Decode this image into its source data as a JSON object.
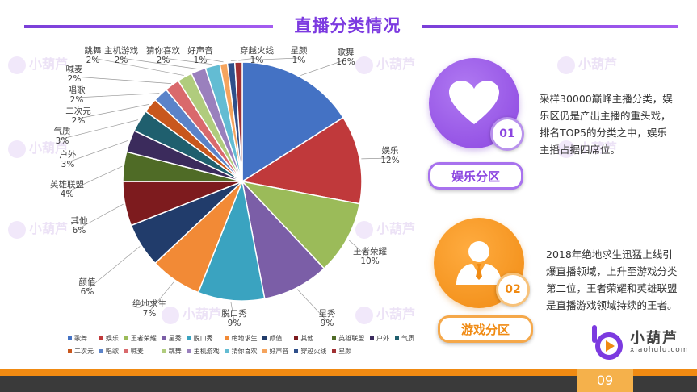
{
  "page": {
    "title": "直播分类情况",
    "page_number": "09"
  },
  "colors": {
    "accent_purple": "#8b45e0",
    "accent_orange": "#f08a12"
  },
  "watermark": {
    "text": "小葫芦"
  },
  "chart_data": {
    "type": "pie",
    "title": "",
    "legend_position": "bottom",
    "slices": [
      {
        "label": "歌舞",
        "value": 16,
        "value_label": "16%",
        "color": "#4472c4"
      },
      {
        "label": "娱乐",
        "value": 12,
        "value_label": "12%",
        "color": "#c0393b"
      },
      {
        "label": "王者荣耀",
        "value": 10,
        "value_label": "10%",
        "color": "#9bbb59"
      },
      {
        "label": "星秀",
        "value": 9,
        "value_label": "9%",
        "color": "#7b5ea7"
      },
      {
        "label": "脱口秀",
        "value": 9,
        "value_label": "9%",
        "color": "#3aa3c0"
      },
      {
        "label": "绝地求生",
        "value": 7,
        "value_label": "7%",
        "color": "#f28a36"
      },
      {
        "label": "颜值",
        "value": 6,
        "value_label": "6%",
        "color": "#213c6b"
      },
      {
        "label": "其他",
        "value": 6,
        "value_label": "6%",
        "color": "#7d1b1e"
      },
      {
        "label": "英雄联盟",
        "value": 4,
        "value_label": "4%",
        "color": "#4f6b26"
      },
      {
        "label": "户外",
        "value": 3,
        "value_label": "3%",
        "color": "#3b2b5c"
      },
      {
        "label": "气质",
        "value": 3,
        "value_label": "3%",
        "color": "#1f5f6e"
      },
      {
        "label": "二次元",
        "value": 2,
        "value_label": "2%",
        "color": "#c8571d"
      },
      {
        "label": "唱歌",
        "value": 2,
        "value_label": "2%",
        "color": "#5b83c9"
      },
      {
        "label": "喊麦",
        "value": 2,
        "value_label": "2%",
        "color": "#d9696c"
      },
      {
        "label": "跳舞",
        "value": 2,
        "value_label": "2%",
        "color": "#b0cc7d"
      },
      {
        "label": "主机游戏",
        "value": 2,
        "value_label": "2%",
        "color": "#9a80bd"
      },
      {
        "label": "猜你喜欢",
        "value": 2,
        "value_label": "2%",
        "color": "#63bcd3"
      },
      {
        "label": "好声音",
        "value": 1,
        "value_label": "1%",
        "color": "#f5a45d"
      },
      {
        "label": "穿越火线",
        "value": 1,
        "value_label": "1%",
        "color": "#2e4f8a"
      },
      {
        "label": "星颜",
        "value": 1,
        "value_label": "1%",
        "color": "#a03033"
      }
    ]
  },
  "sections": [
    {
      "number": "01",
      "label": "娱乐分区",
      "icon": "heart-icon",
      "description": "采样30000巅峰主播分类，娱乐区仍是产出主播的重头戏，排名TOP5的分类之中，娱乐主播占据四席位。"
    },
    {
      "number": "02",
      "label": "游戏分区",
      "icon": "person-icon",
      "description": "2018年绝地求生迅猛上线引爆直播领域，上升至游戏分类第二位，王者荣耀和英雄联盟是直播游戏领域持续的王者。"
    }
  ],
  "logo": {
    "name": "小葫芦",
    "url_text": "xiaohulu.com"
  }
}
